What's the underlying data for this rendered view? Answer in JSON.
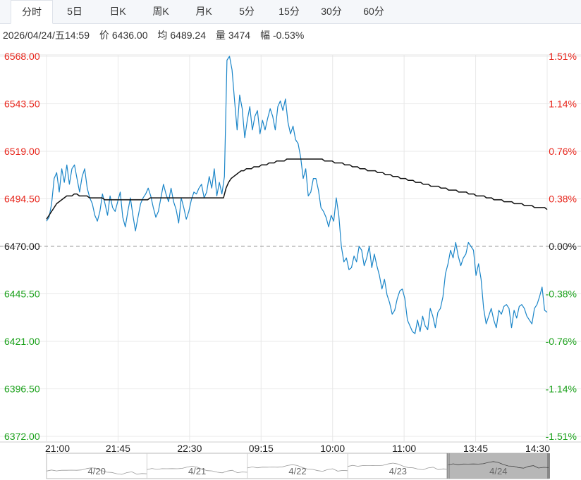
{
  "tabs": [
    {
      "label": "分时",
      "active": true
    },
    {
      "label": "5日",
      "active": false
    },
    {
      "label": "日K",
      "active": false
    },
    {
      "label": "周K",
      "active": false
    },
    {
      "label": "月K",
      "active": false
    },
    {
      "label": "5分",
      "active": false
    },
    {
      "label": "15分",
      "active": false
    },
    {
      "label": "30分",
      "active": false
    },
    {
      "label": "60分",
      "active": false
    }
  ],
  "info": {
    "datetime": "2026/04/24/五14:59",
    "price_label": "价",
    "price": "6436.00",
    "avg_label": "均",
    "avg": "6489.24",
    "vol_label": "量",
    "vol": "3474",
    "change_label": "幅",
    "change": "-0.53%"
  },
  "colors": {
    "up": "#e8251b",
    "down": "#1aa11a",
    "neutral": "#222222",
    "price_line": "#1a85c8",
    "avg_line": "#111111",
    "grid": "#e8e8e8"
  },
  "chart_data": {
    "type": "line",
    "prev_close": 6470.0,
    "y_ticks_left": [
      "6568.00",
      "6543.50",
      "6519.00",
      "6494.50",
      "6470.00",
      "6445.50",
      "6421.00",
      "6396.50",
      "6372.00"
    ],
    "y_ticks_right": [
      "1.51%",
      "1.14%",
      "0.76%",
      "0.38%",
      "0.00%",
      "-0.38%",
      "-0.76%",
      "-1.14%",
      "-1.51%"
    ],
    "ylim": [
      6372.0,
      6568.0
    ],
    "x_ticks": [
      "21:00",
      "21:45",
      "22:30",
      "09:15",
      "10:00",
      "11:00",
      "13:45",
      "14:30"
    ],
    "series": [
      {
        "name": "价",
        "values": [
          6483,
          6485,
          6492,
          6505,
          6508,
          6498,
          6510,
          6503,
          6512,
          6502,
          6510,
          6512,
          6505,
          6498,
          6506,
          6510,
          6500,
          6495,
          6492,
          6486,
          6483,
          6488,
          6497,
          6492,
          6486,
          6496,
          6490,
          6488,
          6493,
          6498,
          6485,
          6480,
          6488,
          6495,
          6486,
          6478,
          6485,
          6492,
          6495,
          6497,
          6500,
          6496,
          6490,
          6485,
          6488,
          6495,
          6502,
          6497,
          6493,
          6500,
          6493,
          6489,
          6482,
          6495,
          6490,
          6484,
          6488,
          6494,
          6498,
          6497,
          6500,
          6502,
          6495,
          6498,
          6506,
          6500,
          6510,
          6496,
          6503,
          6497,
          6506,
          6566,
          6568,
          6561,
          6545,
          6530,
          6548,
          6541,
          6526,
          6535,
          6542,
          6530,
          6537,
          6540,
          6528,
          6535,
          6530,
          6536,
          6541,
          6537,
          6530,
          6542,
          6545,
          6540,
          6546,
          6534,
          6528,
          6532,
          6525,
          6523,
          6516,
          6505,
          6510,
          6496,
          6498,
          6505,
          6505,
          6499,
          6490,
          6488,
          6485,
          6480,
          6486,
          6483,
          6495,
          6486,
          6470,
          6462,
          6464,
          6458,
          6459,
          6465,
          6462,
          6470,
          6468,
          6460,
          6464,
          6470,
          6459,
          6466,
          6460,
          6455,
          6448,
          6453,
          6445,
          6441,
          6435,
          6437,
          6443,
          6447,
          6448,
          6443,
          6432,
          6429,
          6426,
          6425,
          6432,
          6426,
          6434,
          6429,
          6427,
          6438,
          6434,
          6428,
          6436,
          6438,
          6444,
          6456,
          6461,
          6468,
          6464,
          6472,
          6465,
          6460,
          6464,
          6466,
          6472,
          6470,
          6468,
          6455,
          6461,
          6453,
          6438,
          6430,
          6434,
          6438,
          6432,
          6428,
          6437,
          6435,
          6439,
          6440,
          6438,
          6428,
          6437,
          6433,
          6439,
          6440,
          6438,
          6434,
          6432,
          6430,
          6438,
          6440,
          6444,
          6449,
          6437,
          6436
        ]
      },
      {
        "name": "均",
        "values": [
          6484,
          6486,
          6488,
          6490,
          6492,
          6493,
          6494,
          6495,
          6496,
          6496,
          6496,
          6497,
          6497,
          6496,
          6496,
          6496,
          6496,
          6495,
          6495,
          6495,
          6495,
          6495,
          6495,
          6494,
          6494,
          6494,
          6494,
          6494,
          6494,
          6494,
          6494,
          6494,
          6494,
          6494,
          6494,
          6494,
          6494,
          6494,
          6494,
          6494,
          6494,
          6495,
          6495,
          6495,
          6495,
          6495,
          6495,
          6495,
          6495,
          6495,
          6495,
          6495,
          6495,
          6495,
          6495,
          6495,
          6495,
          6495,
          6495,
          6495,
          6495,
          6495,
          6495,
          6495,
          6495,
          6495,
          6495,
          6495,
          6495,
          6495,
          6495,
          6500,
          6503,
          6505,
          6506,
          6507,
          6508,
          6509,
          6509,
          6510,
          6510,
          6510,
          6511,
          6511,
          6511,
          6512,
          6512,
          6512,
          6513,
          6513,
          6513,
          6514,
          6514,
          6514,
          6514,
          6515,
          6515,
          6515,
          6515,
          6515,
          6515,
          6515,
          6515,
          6515,
          6515,
          6515,
          6515,
          6515,
          6515,
          6515,
          6514,
          6514,
          6514,
          6514,
          6513,
          6513,
          6513,
          6513,
          6512,
          6512,
          6512,
          6511,
          6511,
          6511,
          6510,
          6510,
          6510,
          6509,
          6509,
          6509,
          6509,
          6508,
          6508,
          6508,
          6507,
          6507,
          6507,
          6506,
          6506,
          6506,
          6505,
          6505,
          6505,
          6504,
          6504,
          6504,
          6503,
          6503,
          6503,
          6502,
          6502,
          6502,
          6501,
          6501,
          6501,
          6501,
          6500,
          6500,
          6500,
          6499,
          6499,
          6499,
          6499,
          6498,
          6498,
          6498,
          6498,
          6497,
          6497,
          6497,
          6496,
          6496,
          6496,
          6496,
          6495,
          6495,
          6495,
          6494,
          6494,
          6494,
          6494,
          6493,
          6493,
          6493,
          6493,
          6492,
          6492,
          6492,
          6492,
          6491,
          6491,
          6491,
          6491,
          6490,
          6490,
          6490,
          6490,
          6490,
          6489
        ]
      }
    ],
    "navigator": {
      "labels": [
        "4/20",
        "4/21",
        "4/22",
        "4/23",
        "4/24"
      ],
      "selected_index": 4
    }
  }
}
